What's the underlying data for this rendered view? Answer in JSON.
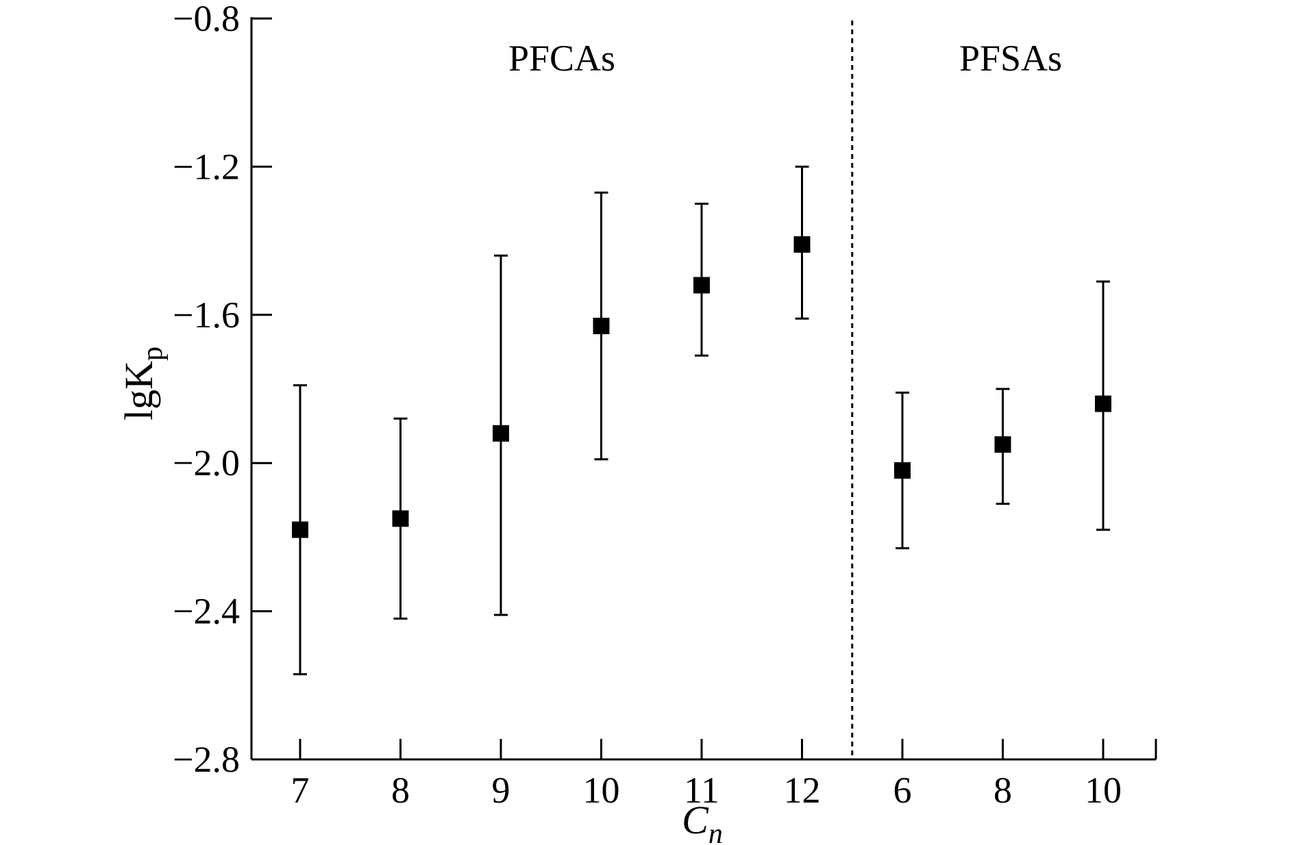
{
  "chart_data": {
    "type": "scatter",
    "title": "",
    "xlabel": "C",
    "xlabel_sub": "n",
    "ylabel": "lgK",
    "ylabel_sub": "p",
    "ylim": [
      -2.8,
      -0.8
    ],
    "yticks": [
      -2.8,
      -2.4,
      -2.0,
      -1.6,
      -1.2,
      -0.8
    ],
    "ytick_labels": [
      "−2.8",
      "−2.4",
      "−2.0",
      "−1.6",
      "−1.2",
      "−0.8"
    ],
    "x_categories": [
      "7",
      "8",
      "9",
      "10",
      "11",
      "12",
      "6",
      "8",
      "10"
    ],
    "groups": [
      {
        "label": "PFCAs",
        "start": 0,
        "end": 5
      },
      {
        "label": "PFSAs",
        "start": 6,
        "end": 8
      }
    ],
    "series": [
      {
        "marker": "square",
        "values": [
          -2.18,
          -2.15,
          -1.92,
          -1.63,
          -1.52,
          -1.41,
          -2.02,
          -1.95,
          -1.84
        ],
        "error_low": [
          -2.57,
          -2.42,
          -2.41,
          -1.99,
          -1.71,
          -1.61,
          -2.23,
          -2.11,
          -2.18
        ],
        "error_high": [
          -1.79,
          -1.88,
          -1.44,
          -1.27,
          -1.3,
          -1.2,
          -1.81,
          -1.8,
          -1.51
        ]
      }
    ],
    "grid": false,
    "legend": "none",
    "divider": "dashed vertical line between 12 and 6",
    "color": "#000000"
  }
}
